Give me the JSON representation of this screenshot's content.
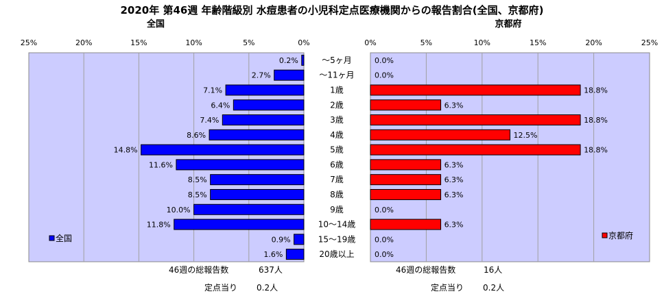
{
  "title": "2020年 第46週 年齢階級別 水痘患者の小児科定点医療機関からの報告割合(全国、京都府)",
  "chart_data": [
    {
      "type": "bar",
      "orientation": "horizontal",
      "direction": "right-to-left",
      "subtitle": "全国",
      "legend": "全国",
      "legend_position": "left",
      "color": "#0000ff",
      "xlim": [
        0,
        25
      ],
      "xticks": [
        "25%",
        "20%",
        "15%",
        "10%",
        "5%",
        "0%"
      ],
      "grid": true,
      "categories": [
        "～5ヶ月",
        "～11ヶ月",
        "1歳",
        "2歳",
        "3歳",
        "4歳",
        "5歳",
        "6歳",
        "7歳",
        "8歳",
        "9歳",
        "10～14歳",
        "15～19歳",
        "20歳以上"
      ],
      "values": [
        0.2,
        2.7,
        7.1,
        6.4,
        7.4,
        8.6,
        14.8,
        11.6,
        8.5,
        8.5,
        10.0,
        11.8,
        0.9,
        1.6
      ],
      "labels": [
        "0.2%",
        "2.7%",
        "7.1%",
        "6.4%",
        "7.4%",
        "8.6%",
        "14.8%",
        "11.6%",
        "8.5%",
        "8.5%",
        "10.0%",
        "11.8%",
        "0.9%",
        "1.6%"
      ]
    },
    {
      "type": "bar",
      "orientation": "horizontal",
      "direction": "left-to-right",
      "subtitle": "京都府",
      "legend": "京都府",
      "legend_position": "right",
      "color": "#ff0000",
      "xlim": [
        0,
        25
      ],
      "xticks": [
        "0%",
        "5%",
        "10%",
        "15%",
        "20%",
        "25%"
      ],
      "grid": true,
      "categories": [
        "～5ヶ月",
        "～11ヶ月",
        "1歳",
        "2歳",
        "3歳",
        "4歳",
        "5歳",
        "6歳",
        "7歳",
        "8歳",
        "9歳",
        "10～14歳",
        "15～19歳",
        "20歳以上"
      ],
      "values": [
        0.0,
        0.0,
        18.8,
        6.3,
        18.8,
        12.5,
        18.8,
        6.3,
        6.3,
        6.3,
        0.0,
        6.3,
        0.0,
        0.0
      ],
      "labels": [
        "0.0%",
        "0.0%",
        "18.8%",
        "6.3%",
        "18.8%",
        "12.5%",
        "18.8%",
        "6.3%",
        "6.3%",
        "6.3%",
        "0.0%",
        "6.3%",
        "0.0%",
        "0.0%"
      ]
    }
  ],
  "categories_display": [
    "～5ヶ月",
    "～11ヶ月",
    "1歳",
    "2歳",
    "3歳",
    "4歳",
    "5歳",
    "6歳",
    "7歳",
    "8歳",
    "9歳",
    "10～14歳",
    "15～19歳",
    "20歳以上"
  ],
  "footer": {
    "national": {
      "total_label": "46週の総報告数",
      "total_value": "637人",
      "per_label": "定点当り",
      "per_value": "0.2人"
    },
    "kyoto": {
      "total_label": "46週の総報告数",
      "total_value": "16人",
      "per_label": "定点当り",
      "per_value": "0.2人"
    }
  }
}
